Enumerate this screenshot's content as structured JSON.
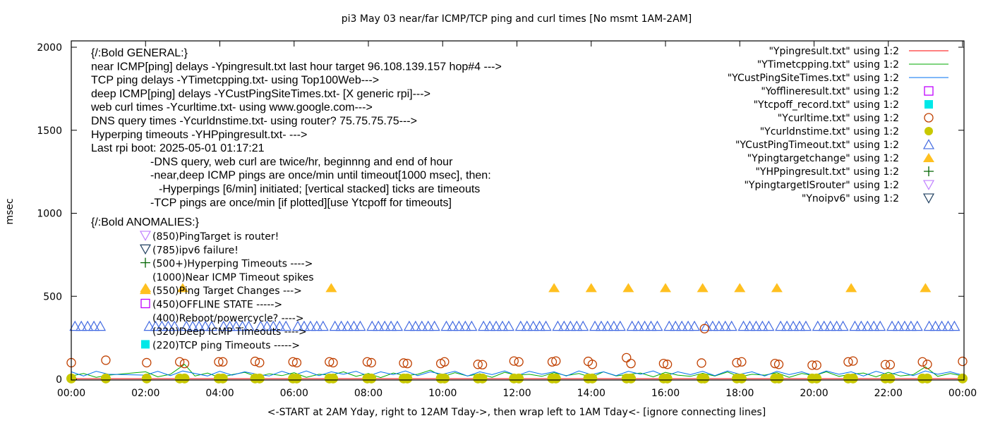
{
  "chart_data": {
    "type": "line",
    "title": "pi3 May 03  near/far ICMP/TCP ping and curl times [No msmt 1AM-2AM]",
    "xlabel": "<-START at 2AM Yday, right to 12AM Tday->, then wrap left to 1AM Tday<- [ignore connecting lines]",
    "ylabel": "msec",
    "xlim_hours": [
      0,
      24
    ],
    "ylim": [
      0,
      2000
    ],
    "x_ticks": [
      "00:00",
      "02:00",
      "04:00",
      "06:00",
      "08:00",
      "10:00",
      "12:00",
      "14:00",
      "16:00",
      "18:00",
      "20:00",
      "22:00",
      "00:00"
    ],
    "y_ticks": [
      0,
      500,
      1000,
      1500,
      2000
    ],
    "grid": false,
    "legend_position": "top-right",
    "legend": [
      {
        "label": "\"Ypingresult.txt\" using 1:2",
        "style": "line",
        "color": "#ff0000"
      },
      {
        "label": "\"YTimetcpping.txt\" using 1:2",
        "style": "line",
        "color": "#00aa00"
      },
      {
        "label": "\"YCustPingSiteTimes.txt\" using 1:2",
        "style": "line",
        "color": "#0070f0"
      },
      {
        "label": "\"Yofflineresult.txt\" using 1:2",
        "style": "open-square",
        "color": "#c000ff"
      },
      {
        "label": "\"Ytcpoff_record.txt\" using 1:2",
        "style": "filled-square",
        "color": "#00e8e8"
      },
      {
        "label": "\"Ycurltime.txt\" using 1:2",
        "style": "open-circle",
        "color": "#c04000"
      },
      {
        "label": "\"Ycurldnstime.txt\" using 1:2",
        "style": "filled-circle",
        "color": "#c8c800"
      },
      {
        "label": "\"YCustPingTimeout.txt\" using 1:2",
        "style": "open-triangle",
        "color": "#4169e1"
      },
      {
        "label": "\"Ypingtargetchange\" using 1:2",
        "style": "filled-triangle",
        "color": "#ffc020"
      },
      {
        "label": "\"YHPpingresult.txt\" using 1:2",
        "style": "plus",
        "color": "#006400"
      },
      {
        "label": "\"YpingtargetISrouter\" using 1:2",
        "style": "open-down-triangle",
        "color": "#c080ff"
      },
      {
        "label": "\"Ynoipv6\" using 1:2",
        "style": "open-down-triangle",
        "color": "#204060"
      }
    ],
    "series": {
      "Ypingresult": [
        [
          0,
          4
        ],
        [
          1,
          4
        ],
        [
          2,
          4
        ],
        [
          6,
          4
        ],
        [
          10,
          4
        ],
        [
          14,
          4
        ],
        [
          18,
          4
        ],
        [
          22,
          4
        ],
        [
          24,
          4
        ]
      ],
      "YTimetcpping": [
        [
          0,
          20
        ],
        [
          0.33,
          35
        ],
        [
          0.67,
          12
        ],
        [
          1.0,
          25
        ],
        [
          2.0,
          45
        ],
        [
          2.33,
          15
        ],
        [
          2.67,
          30
        ],
        [
          3.05,
          90
        ],
        [
          3.33,
          20
        ],
        [
          3.67,
          38
        ],
        [
          4.0,
          10
        ],
        [
          4.33,
          28
        ],
        [
          4.67,
          42
        ],
        [
          5.0,
          15
        ],
        [
          5.33,
          33
        ],
        [
          5.67,
          22
        ],
        [
          6.0,
          40
        ],
        [
          6.33,
          12
        ],
        [
          6.67,
          30
        ],
        [
          7.0,
          25
        ],
        [
          7.33,
          45
        ],
        [
          7.67,
          18
        ],
        [
          8.0,
          35
        ],
        [
          8.33,
          10
        ],
        [
          8.67,
          38
        ],
        [
          9.0,
          22
        ],
        [
          9.33,
          30
        ],
        [
          9.67,
          55
        ],
        [
          10.0,
          15
        ],
        [
          10.33,
          40
        ],
        [
          10.67,
          20
        ],
        [
          11.0,
          33
        ],
        [
          11.33,
          12
        ],
        [
          11.67,
          42
        ],
        [
          12.0,
          25
        ],
        [
          12.33,
          30
        ],
        [
          12.67,
          18
        ],
        [
          13.0,
          40
        ],
        [
          13.33,
          22
        ],
        [
          13.67,
          35
        ],
        [
          14.0,
          12
        ],
        [
          14.33,
          45
        ],
        [
          14.67,
          20
        ],
        [
          15.0,
          30
        ],
        [
          15.33,
          38
        ],
        [
          15.67,
          15
        ],
        [
          16.0,
          42
        ],
        [
          16.33,
          25
        ],
        [
          16.67,
          18
        ],
        [
          17.0,
          36
        ],
        [
          17.33,
          20
        ],
        [
          17.67,
          44
        ],
        [
          18.0,
          15
        ],
        [
          18.33,
          30
        ],
        [
          18.67,
          25
        ],
        [
          19.0,
          40
        ],
        [
          19.33,
          12
        ],
        [
          19.67,
          35
        ],
        [
          20.0,
          22
        ],
        [
          20.33,
          45
        ],
        [
          20.67,
          18
        ],
        [
          21.0,
          30
        ],
        [
          21.33,
          38
        ],
        [
          21.67,
          15
        ],
        [
          22.0,
          42
        ],
        [
          22.33,
          20
        ],
        [
          22.67,
          28
        ],
        [
          23.0,
          75
        ],
        [
          23.33,
          18
        ],
        [
          23.67,
          35
        ],
        [
          24.0,
          20
        ]
      ],
      "YCustPingSiteTimes": [
        [
          0,
          45
        ],
        [
          0.33,
          20
        ],
        [
          0.67,
          48
        ],
        [
          1.0,
          30
        ],
        [
          2.0,
          25
        ],
        [
          2.33,
          48
        ],
        [
          2.67,
          22
        ],
        [
          3.0,
          50
        ],
        [
          3.33,
          35
        ],
        [
          3.67,
          20
        ],
        [
          4.0,
          48
        ],
        [
          4.33,
          25
        ],
        [
          4.67,
          45
        ],
        [
          5.0,
          30
        ],
        [
          5.33,
          20
        ],
        [
          5.67,
          48
        ],
        [
          6.0,
          25
        ],
        [
          6.33,
          50
        ],
        [
          6.67,
          22
        ],
        [
          7.0,
          45
        ],
        [
          7.33,
          30
        ],
        [
          7.67,
          48
        ],
        [
          8.0,
          20
        ],
        [
          8.33,
          45
        ],
        [
          8.67,
          28
        ],
        [
          9.0,
          50
        ],
        [
          9.33,
          22
        ],
        [
          9.67,
          45
        ],
        [
          10.0,
          30
        ],
        [
          10.33,
          48
        ],
        [
          10.67,
          20
        ],
        [
          11.0,
          45
        ],
        [
          11.33,
          28
        ],
        [
          11.67,
          50
        ],
        [
          12.0,
          22
        ],
        [
          12.33,
          48
        ],
        [
          12.67,
          30
        ],
        [
          13.0,
          45
        ],
        [
          13.33,
          20
        ],
        [
          13.67,
          50
        ],
        [
          14.0,
          28
        ],
        [
          14.33,
          45
        ],
        [
          14.67,
          22
        ],
        [
          15.0,
          48
        ],
        [
          15.33,
          30
        ],
        [
          15.67,
          50
        ],
        [
          16.0,
          20
        ],
        [
          16.33,
          45
        ],
        [
          16.67,
          28
        ],
        [
          17.0,
          48
        ],
        [
          17.33,
          22
        ],
        [
          17.67,
          50
        ],
        [
          18.0,
          30
        ],
        [
          18.33,
          45
        ],
        [
          18.67,
          20
        ],
        [
          19.0,
          48
        ],
        [
          19.33,
          28
        ],
        [
          19.67,
          45
        ],
        [
          20.0,
          22
        ],
        [
          20.33,
          50
        ],
        [
          20.67,
          30
        ],
        [
          21.0,
          45
        ],
        [
          21.33,
          20
        ],
        [
          21.67,
          48
        ],
        [
          22.0,
          28
        ],
        [
          22.33,
          45
        ],
        [
          22.67,
          22
        ],
        [
          23.0,
          50
        ],
        [
          23.33,
          30
        ],
        [
          23.67,
          45
        ],
        [
          24.0,
          25
        ]
      ],
      "Ycurltime": [
        [
          0.0,
          100
        ],
        [
          0.93,
          115
        ],
        [
          2.03,
          100
        ],
        [
          2.92,
          105
        ],
        [
          3.05,
          95
        ],
        [
          3.97,
          105
        ],
        [
          4.08,
          105
        ],
        [
          4.95,
          108
        ],
        [
          5.07,
          100
        ],
        [
          5.97,
          105
        ],
        [
          6.07,
          100
        ],
        [
          6.95,
          105
        ],
        [
          7.05,
          100
        ],
        [
          7.97,
          105
        ],
        [
          8.08,
          100
        ],
        [
          8.95,
          98
        ],
        [
          9.05,
          95
        ],
        [
          9.95,
          95
        ],
        [
          10.05,
          105
        ],
        [
          10.95,
          90
        ],
        [
          11.07,
          88
        ],
        [
          11.92,
          110
        ],
        [
          12.05,
          105
        ],
        [
          12.95,
          105
        ],
        [
          13.05,
          110
        ],
        [
          13.92,
          108
        ],
        [
          14.03,
          90
        ],
        [
          14.95,
          130
        ],
        [
          15.07,
          95
        ],
        [
          15.95,
          95
        ],
        [
          16.05,
          90
        ],
        [
          16.97,
          98
        ],
        [
          17.05,
          305
        ],
        [
          17.92,
          100
        ],
        [
          18.05,
          105
        ],
        [
          18.95,
          95
        ],
        [
          19.05,
          90
        ],
        [
          19.95,
          85
        ],
        [
          20.07,
          85
        ],
        [
          20.92,
          105
        ],
        [
          21.05,
          110
        ],
        [
          21.92,
          88
        ],
        [
          22.05,
          88
        ],
        [
          22.92,
          105
        ],
        [
          23.05,
          90
        ],
        [
          24.0,
          108
        ]
      ],
      "Ycurldnstime": [
        [
          0.0,
          5
        ],
        [
          0.93,
          5
        ],
        [
          2.03,
          5
        ],
        [
          2.92,
          5
        ],
        [
          3.05,
          5
        ],
        [
          3.97,
          5
        ],
        [
          4.08,
          5
        ],
        [
          4.95,
          5
        ],
        [
          5.07,
          5
        ],
        [
          5.97,
          5
        ],
        [
          6.07,
          5
        ],
        [
          6.95,
          5
        ],
        [
          7.05,
          5
        ],
        [
          7.97,
          5
        ],
        [
          8.08,
          5
        ],
        [
          8.95,
          5
        ],
        [
          9.05,
          5
        ],
        [
          9.95,
          5
        ],
        [
          10.05,
          5
        ],
        [
          10.95,
          5
        ],
        [
          11.07,
          5
        ],
        [
          11.92,
          5
        ],
        [
          12.05,
          5
        ],
        [
          12.95,
          5
        ],
        [
          13.05,
          5
        ],
        [
          13.92,
          5
        ],
        [
          14.03,
          5
        ],
        [
          14.95,
          5
        ],
        [
          15.07,
          5
        ],
        [
          15.95,
          5
        ],
        [
          16.05,
          5
        ],
        [
          16.97,
          5
        ],
        [
          17.05,
          5
        ],
        [
          17.92,
          5
        ],
        [
          18.05,
          5
        ],
        [
          18.95,
          5
        ],
        [
          19.05,
          5
        ],
        [
          19.95,
          5
        ],
        [
          20.07,
          5
        ],
        [
          20.92,
          5
        ],
        [
          21.05,
          5
        ],
        [
          21.92,
          5
        ],
        [
          22.05,
          5
        ],
        [
          22.92,
          5
        ],
        [
          23.05,
          5
        ],
        [
          24.0,
          5
        ]
      ],
      "YCustPingTimeout_value": 320,
      "YCustPingTimeout_hours": [
        0,
        2,
        3,
        4,
        5,
        6,
        7,
        8,
        9,
        10,
        11,
        12,
        13,
        14,
        15,
        16,
        17,
        18,
        19,
        20,
        21,
        22,
        23
      ],
      "Ypingtargetchange": [
        [
          2,
          550
        ],
        [
          3,
          550
        ],
        [
          7,
          550
        ],
        [
          13,
          550
        ],
        [
          14,
          550
        ],
        [
          15,
          550
        ],
        [
          16,
          550
        ],
        [
          17,
          550
        ],
        [
          18,
          550
        ],
        [
          19,
          550
        ],
        [
          21,
          550
        ],
        [
          23,
          550
        ]
      ]
    }
  },
  "annotations": {
    "general": [
      "{/:Bold GENERAL:}",
      "near ICMP[ping] delays -Ypingresult.txt last hour target 96.108.139.157 hop#4 --->",
      "TCP ping delays -YTimetcpping.txt- using Top100Web--->",
      "deep ICMP[ping] delays -YCustPingSiteTimes.txt- [X generic rpi]--->",
      "web curl times -Ycurltime.txt- using www.google.com--->",
      "DNS query times -Ycurldnstime.txt- using router? 75.75.75.75--->",
      "Hyperping timeouts -YHPpingresult.txt- --->",
      "Last rpi boot: 2025-05-01 01:17:21",
      "-DNS query, web curl are twice/hr, beginnng and end of hour",
      "-near,deep ICMP pings are once/min until timeout[1000 msec], then:",
      "-Hyperpings [6/min] initiated; [vertical stacked] ticks are timeouts",
      "-TCP pings are once/min [if plotted][use Ytcpoff for timeouts]"
    ],
    "anomalies_title": "{/:Bold ANOMALIES:}",
    "anomalies": [
      {
        "text": "(850)PingTarget is router!",
        "icon": "open-down-triangle",
        "color": "#c080ff"
      },
      {
        "text": "(785)ipv6 failure!",
        "icon": "open-down-triangle",
        "color": "#204060"
      },
      {
        "text": "(500+)Hyperping Timeouts ---->",
        "icon": "plus",
        "color": "#006400"
      },
      {
        "text": "(1000)Near ICMP Timeout spikes",
        "icon": "",
        "color": ""
      },
      {
        "text": "(550)Ping Target Changes --->",
        "icon": "filled-triangle",
        "color": "#ffc020"
      },
      {
        "text": "(450)OFFLINE STATE ----->",
        "icon": "open-square",
        "color": "#c000ff"
      },
      {
        "text": "(400)Reboot/powercycle? ---->",
        "icon": "",
        "color": ""
      },
      {
        "text": "(320)Deep ICMP Timeouts ---->",
        "icon": "",
        "color": ""
      },
      {
        "text": "(220)TCP ping Timeouts ----->",
        "icon": "filled-square",
        "color": "#00e8e8"
      }
    ]
  }
}
